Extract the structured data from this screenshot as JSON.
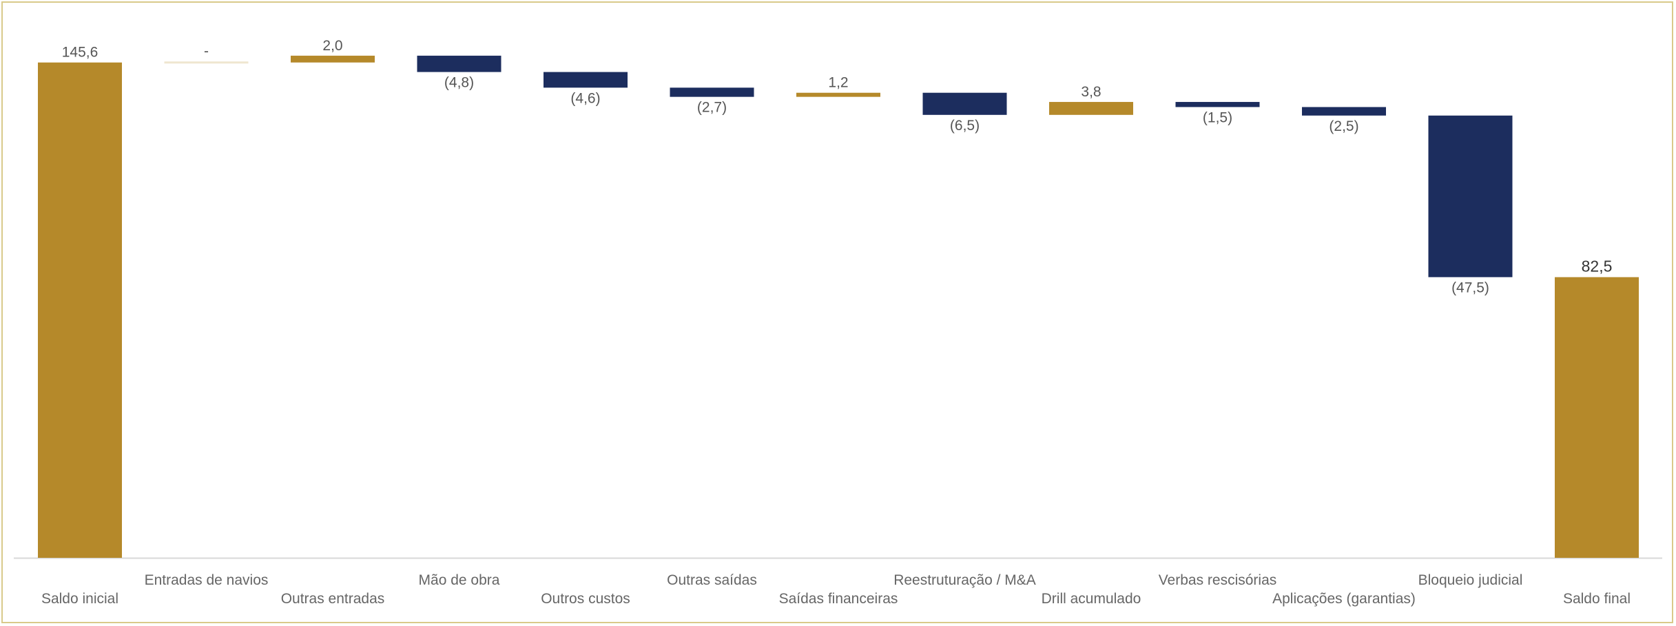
{
  "chart_data": {
    "type": "waterfall",
    "title": "",
    "xlabel": "",
    "ylabel": "",
    "ylim": [
      0,
      155
    ],
    "grid": false,
    "legend": "none",
    "colors": {
      "total": "#b5892a",
      "increase": "#b5892a",
      "decrease": "#1c2d5e",
      "zero": "#efe6d0",
      "axis": "#d8d8d8",
      "frame": "#d9c98a"
    },
    "categories": [
      "Saldo inicial",
      "Entradas de navios",
      "Outras entradas",
      "Mão de obra",
      "Outros custos",
      "Outras saídas",
      "Saídas financeiras",
      "Reestruturação / M&A",
      "Drill acumulado",
      "Verbas rescisórias",
      "Aplicações (garantias)",
      "Bloqueio judicial",
      "Saldo final"
    ],
    "values": [
      145.6,
      0,
      2.0,
      -4.8,
      -4.6,
      -2.7,
      1.2,
      -6.5,
      3.8,
      -1.5,
      -2.5,
      -47.5,
      82.5
    ],
    "kinds": [
      "total",
      "delta",
      "delta",
      "delta",
      "delta",
      "delta",
      "delta",
      "delta",
      "delta",
      "delta",
      "delta",
      "delta",
      "total"
    ],
    "data_labels": [
      "145,6",
      "-",
      "2,0",
      "(4,8)",
      "(4,6)",
      "(2,7)",
      "1,2",
      "(6,5)",
      "3,8",
      "(1,5)",
      "(2,5)",
      "(47,5)",
      "82,5"
    ]
  }
}
